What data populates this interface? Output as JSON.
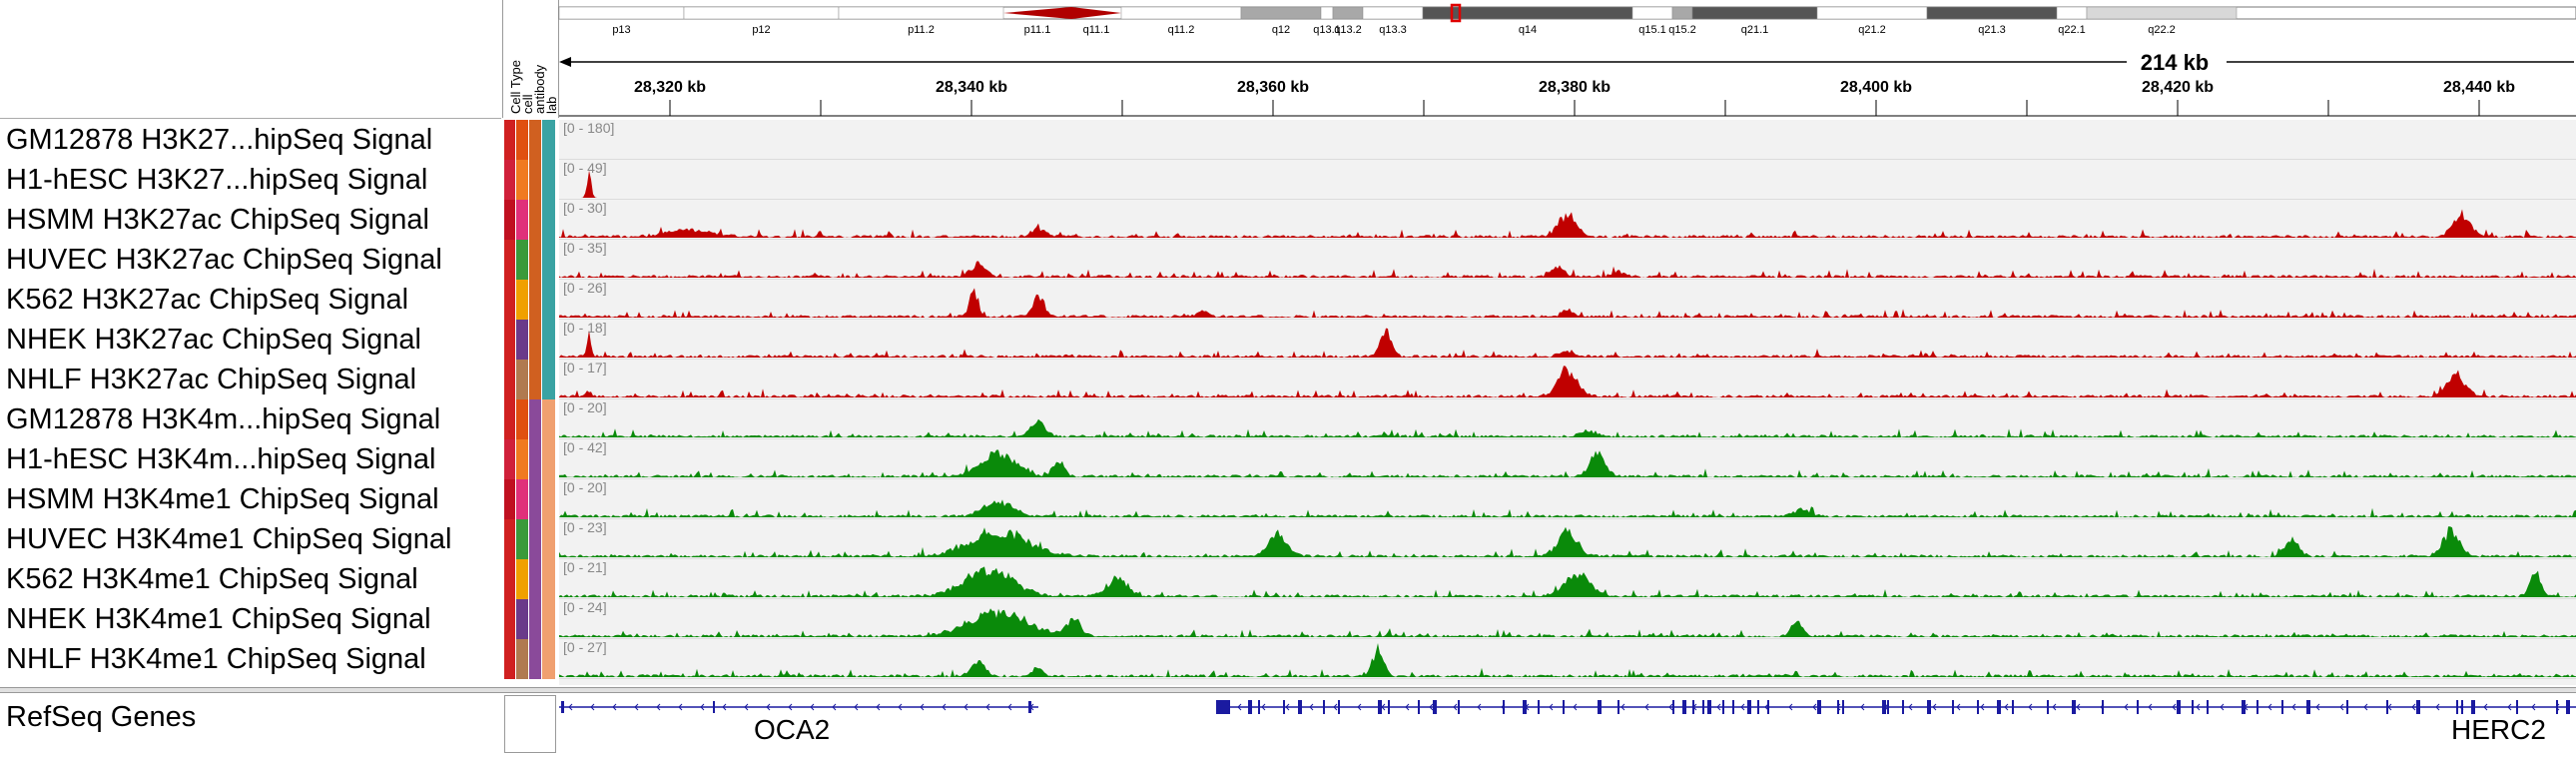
{
  "ideogram": {
    "bands": [
      {
        "name": "p13",
        "stain": "white"
      },
      {
        "name": "p12",
        "stain": "white"
      },
      {
        "name": "p11.2",
        "stain": "white"
      },
      {
        "name": "p11.1",
        "stain": "centromere"
      },
      {
        "name": "q11.1",
        "stain": "centromere"
      },
      {
        "name": "q11.2",
        "stain": "white"
      },
      {
        "name": "q12",
        "stain": "gray"
      },
      {
        "name": "q13.1",
        "stain": "white"
      },
      {
        "name": "q13.2",
        "stain": "gray"
      },
      {
        "name": "q13.3",
        "stain": "white"
      },
      {
        "name": "q14",
        "stain": "dark"
      },
      {
        "name": "q15.1",
        "stain": "white"
      },
      {
        "name": "q15.2",
        "stain": "gray"
      },
      {
        "name": "q21.1",
        "stain": "dark"
      },
      {
        "name": "q21.2",
        "stain": "white"
      },
      {
        "name": "q21.3",
        "stain": "dark"
      },
      {
        "name": "q22.1",
        "stain": "white"
      },
      {
        "name": "q22.2",
        "stain": "lightgray"
      }
    ]
  },
  "ruler": {
    "span_label": "214 kb",
    "ticks": [
      "28,320 kb",
      "28,340 kb",
      "28,360 kb",
      "28,380 kb",
      "28,400 kb",
      "28,420 kb",
      "28,440 kb"
    ]
  },
  "attribute_headers": [
    "Cell Type",
    "cell",
    "antibody",
    "lab"
  ],
  "tracks": [
    {
      "name": "GM12878 H3K27...hipSeq Signal",
      "range": "[0 - 180]",
      "color": "#c00000",
      "attrs": [
        "#d02020",
        "#e05010",
        "#d06020",
        "#3aa3a3"
      ]
    },
    {
      "name": "H1-hESC H3K27...hipSeq Signal",
      "range": "[0 - 49]",
      "color": "#c00000",
      "attrs": [
        "#d0203a",
        "#f07a20",
        "#d06020",
        "#3aa3a3"
      ]
    },
    {
      "name": "HSMM H3K27ac ChipSeq Signal",
      "range": "[0 - 30]",
      "color": "#c00000",
      "attrs": [
        "#c01020",
        "#e0307a",
        "#d06020",
        "#3aa3a3"
      ]
    },
    {
      "name": "HUVEC H3K27ac ChipSeq Signal",
      "range": "[0 - 35]",
      "color": "#c00000",
      "attrs": [
        "#d02020",
        "#3a9a3a",
        "#d06020",
        "#3aa3a3"
      ]
    },
    {
      "name": "K562 H3K27ac ChipSeq Signal",
      "range": "[0 - 26]",
      "color": "#c00000",
      "attrs": [
        "#d02020",
        "#f0a000",
        "#d06020",
        "#3aa3a3"
      ]
    },
    {
      "name": "NHEK H3K27ac ChipSeq Signal",
      "range": "[0 - 18]",
      "color": "#c00000",
      "attrs": [
        "#d02020",
        "#6a3a8a",
        "#d06020",
        "#3aa3a3"
      ]
    },
    {
      "name": "NHLF H3K27ac ChipSeq Signal",
      "range": "[0 - 17]",
      "color": "#c00000",
      "attrs": [
        "#d02020",
        "#b07a50",
        "#d06020",
        "#3aa3a3"
      ]
    },
    {
      "name": "GM12878 H3K4m...hipSeq Signal",
      "range": "[0 - 20]",
      "color": "#0a8a0a",
      "attrs": [
        "#d02020",
        "#e05010",
        "#8a4a9a",
        "#f0a070"
      ]
    },
    {
      "name": "H1-hESC H3K4m...hipSeq Signal",
      "range": "[0 - 42]",
      "color": "#0a8a0a",
      "attrs": [
        "#d0203a",
        "#f07a20",
        "#8a4a9a",
        "#f0a070"
      ]
    },
    {
      "name": "HSMM H3K4me1 ChipSeq Signal",
      "range": "[0 - 20]",
      "color": "#0a8a0a",
      "attrs": [
        "#c01020",
        "#e0307a",
        "#8a4a9a",
        "#f0a070"
      ]
    },
    {
      "name": "HUVEC H3K4me1 ChipSeq Signal",
      "range": "[0 - 23]",
      "color": "#0a8a0a",
      "attrs": [
        "#d02020",
        "#3a9a3a",
        "#8a4a9a",
        "#f0a070"
      ]
    },
    {
      "name": "K562 H3K4me1 ChipSeq Signal",
      "range": "[0 - 21]",
      "color": "#0a8a0a",
      "attrs": [
        "#d02020",
        "#f0a000",
        "#8a4a9a",
        "#f0a070"
      ]
    },
    {
      "name": "NHEK H3K4me1 ChipSeq Signal",
      "range": "[0 - 24]",
      "color": "#0a8a0a",
      "attrs": [
        "#d02020",
        "#6a3a8a",
        "#8a4a9a",
        "#f0a070"
      ]
    },
    {
      "name": "NHLF H3K4me1 ChipSeq Signal",
      "range": "[0 - 27]",
      "color": "#0a8a0a",
      "attrs": [
        "#d02020",
        "#b07a50",
        "#8a4a9a",
        "#f0a070"
      ]
    }
  ],
  "gene_track": {
    "name": "RefSeq Genes",
    "genes": [
      "OCA2",
      "HERC2"
    ],
    "color": "#1a1aa0"
  }
}
